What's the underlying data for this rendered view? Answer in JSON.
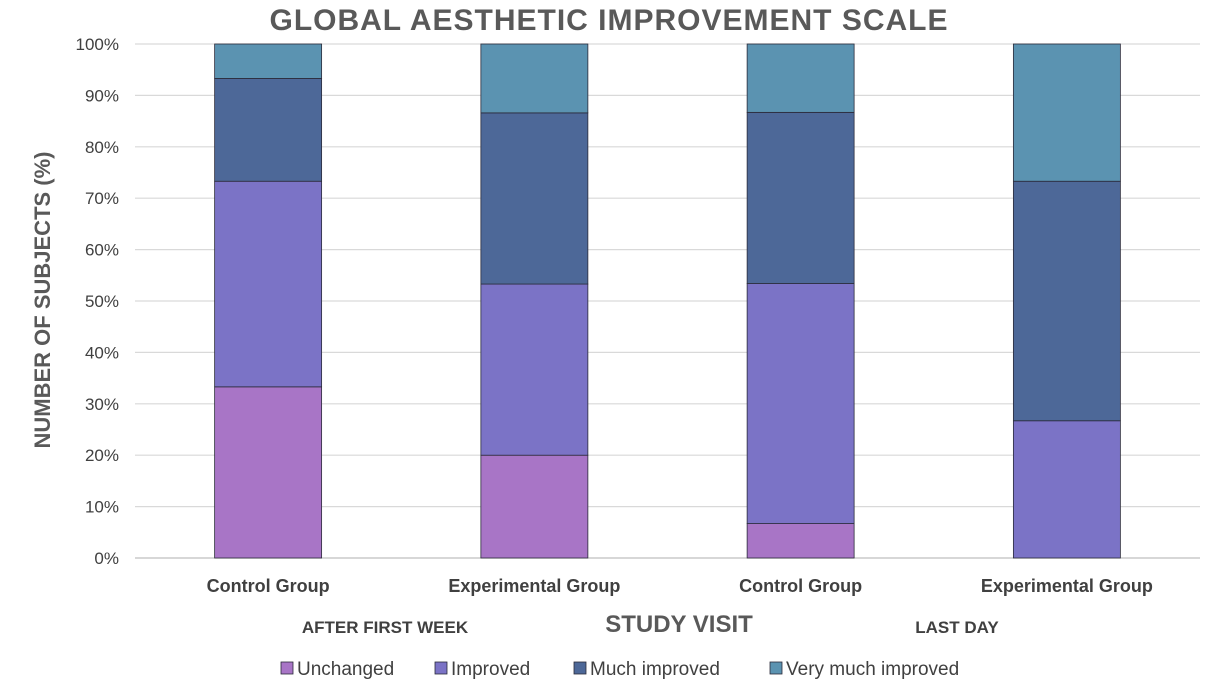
{
  "chart_data": {
    "type": "bar",
    "stacked": true,
    "title": "GLOBAL  AESTHETIC  IMPROVEMENT  SCALE",
    "xlabel": "STUDY VISIT",
    "ylabel": "NUMBER OF SUBJECTS (%)",
    "ylim": [
      0,
      100
    ],
    "yticks": [
      "0%",
      "10%",
      "20%",
      "30%",
      "40%",
      "50%",
      "60%",
      "70%",
      "80%",
      "90%",
      "100%"
    ],
    "categories": [
      "Control Group",
      "Experimental Group",
      "Control Group",
      "Experimental Group"
    ],
    "category_groups": [
      {
        "label": "AFTER FIRST WEEK",
        "span": [
          0,
          1
        ]
      },
      {
        "label": "LAST DAY",
        "span": [
          2,
          3
        ]
      }
    ],
    "series": [
      {
        "name": "Unchanged",
        "color": "#a875c6",
        "values": [
          33.3,
          20.0,
          6.7,
          0.0
        ]
      },
      {
        "name": "Improved",
        "color": "#7b73c6",
        "values": [
          40.0,
          33.3,
          46.7,
          26.7
        ]
      },
      {
        "name": "Much improved",
        "color": "#4d6898",
        "values": [
          20.0,
          33.3,
          33.3,
          46.6
        ]
      },
      {
        "name": "Very much improved",
        "color": "#5b93b1",
        "values": [
          6.7,
          13.4,
          13.3,
          26.7
        ]
      }
    ],
    "grid": true,
    "legend_position": "bottom"
  }
}
